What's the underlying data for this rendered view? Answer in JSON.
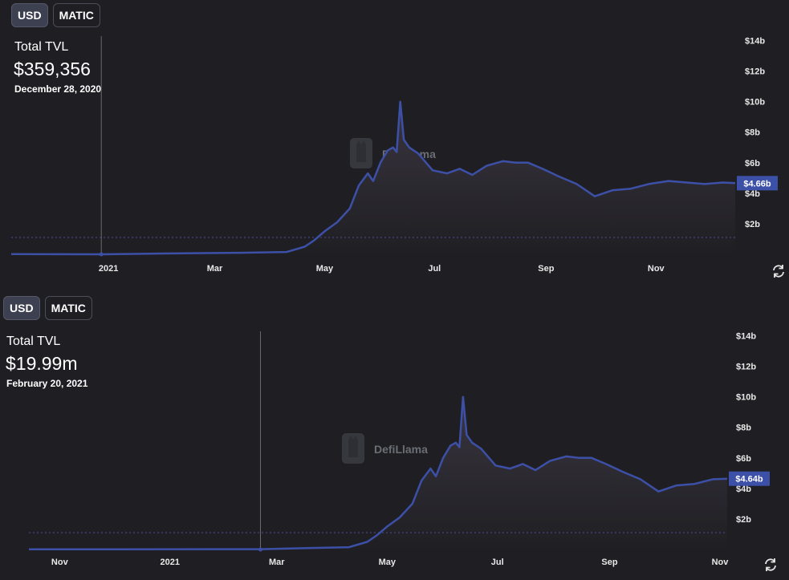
{
  "charts": [
    {
      "toggle": {
        "usd": "USD",
        "matic": "MATIC"
      },
      "tvl_label": "Total TVL",
      "tvl_value": "$359,356",
      "tvl_date": "December 28, 2020",
      "current_label": "$4.66b",
      "watermark": "DefiLlama"
    },
    {
      "toggle": {
        "usd": "USD",
        "matic": "MATIC"
      },
      "tvl_label": "Total TVL",
      "tvl_value": "$19.99m",
      "tvl_date": "February 20, 2021",
      "current_label": "$4.64b",
      "watermark": "DefiLlama"
    }
  ],
  "colors": {
    "background": "#1f1f23",
    "line": "#3d50a8",
    "area_top": "#3a3540",
    "area_bottom": "#1f1f23",
    "crosshair": "#6b6b6b",
    "label_bg": "#3d50a8"
  },
  "icons": {
    "refresh": "refresh-icon",
    "watermark": "llama-icon"
  },
  "chart_data": [
    {
      "type": "area",
      "y_tick_labels": [
        "$2b",
        "$4b",
        "$6b",
        "$8b",
        "$10b",
        "$12b",
        "$14b"
      ],
      "y_ticks": [
        2,
        4,
        6,
        8,
        10,
        12,
        14
      ],
      "x_tick_labels": [
        "2021",
        "Mar",
        "May",
        "Jul",
        "Sep",
        "Nov"
      ],
      "x_ticks": [
        "2021-01-01",
        "2021-03-01",
        "2021-05-01",
        "2021-07-01",
        "2021-09-01",
        "2021-11-01"
      ],
      "x_range": [
        "2020-11-08",
        "2021-12-15"
      ],
      "ylim": [
        0,
        14.5
      ],
      "ylabel_unit": "billions USD",
      "crosshair_date": "2020-12-28",
      "dashed_line_value": 1.1,
      "last_value": 4.66,
      "series": [
        {
          "x": [
            "2020-11-08",
            "2020-12-28",
            "2021-02-01",
            "2021-03-15",
            "2021-04-10",
            "2021-04-20",
            "2021-04-25",
            "2021-05-01",
            "2021-05-08",
            "2021-05-15",
            "2021-05-20",
            "2021-05-25",
            "2021-05-28",
            "2021-06-01",
            "2021-06-05",
            "2021-06-08",
            "2021-06-10",
            "2021-06-12",
            "2021-06-14",
            "2021-06-17",
            "2021-06-22",
            "2021-06-30",
            "2021-07-08",
            "2021-07-15",
            "2021-07-22",
            "2021-07-30",
            "2021-08-08",
            "2021-08-15",
            "2021-08-22",
            "2021-08-30",
            "2021-09-08",
            "2021-09-18",
            "2021-09-28",
            "2021-10-08",
            "2021-10-18",
            "2021-10-28",
            "2021-11-08",
            "2021-11-18",
            "2021-11-28",
            "2021-12-08",
            "2021-12-15"
          ],
          "y": [
            0.01,
            0.0004,
            0.05,
            0.1,
            0.15,
            0.5,
            0.9,
            1.5,
            2.1,
            3.0,
            4.5,
            5.3,
            4.8,
            6.0,
            6.8,
            7.0,
            6.7,
            10.0,
            7.5,
            7.0,
            6.6,
            5.5,
            5.3,
            5.6,
            5.2,
            5.8,
            6.1,
            6.0,
            6.0,
            5.6,
            5.1,
            4.6,
            3.8,
            4.2,
            4.3,
            4.6,
            4.8,
            4.7,
            4.6,
            4.7,
            4.66
          ]
        }
      ]
    },
    {
      "type": "area",
      "y_tick_labels": [
        "$2b",
        "$4b",
        "$6b",
        "$8b",
        "$10b",
        "$12b",
        "$14b"
      ],
      "y_ticks": [
        2,
        4,
        6,
        8,
        10,
        12,
        14
      ],
      "x_tick_labels": [
        "Nov",
        "2021",
        "Mar",
        "May",
        "Jul",
        "Sep",
        "Nov"
      ],
      "x_ticks": [
        "2020-11-01",
        "2021-01-01",
        "2021-03-01",
        "2021-05-01",
        "2021-07-01",
        "2021-09-01",
        "2021-11-01"
      ],
      "x_range": [
        "2020-10-15",
        "2021-11-05"
      ],
      "ylim": [
        0,
        14.5
      ],
      "ylabel_unit": "billions USD",
      "crosshair_date": "2021-02-20",
      "dashed_line_value": 1.1,
      "last_value": 4.64,
      "series": [
        {
          "x": [
            "2020-10-15",
            "2020-12-01",
            "2021-02-20",
            "2021-03-20",
            "2021-04-10",
            "2021-04-20",
            "2021-04-25",
            "2021-05-01",
            "2021-05-08",
            "2021-05-15",
            "2021-05-20",
            "2021-05-25",
            "2021-05-28",
            "2021-06-01",
            "2021-06-05",
            "2021-06-08",
            "2021-06-10",
            "2021-06-12",
            "2021-06-14",
            "2021-06-17",
            "2021-06-22",
            "2021-06-30",
            "2021-07-08",
            "2021-07-15",
            "2021-07-22",
            "2021-07-30",
            "2021-08-08",
            "2021-08-15",
            "2021-08-22",
            "2021-08-30",
            "2021-09-08",
            "2021-09-18",
            "2021-09-28",
            "2021-10-08",
            "2021-10-18",
            "2021-10-28",
            "2021-11-05"
          ],
          "y": [
            0.01,
            0.01,
            0.02,
            0.1,
            0.15,
            0.5,
            0.9,
            1.5,
            2.1,
            3.0,
            4.5,
            5.3,
            4.8,
            6.0,
            6.8,
            7.0,
            6.7,
            10.0,
            7.5,
            7.0,
            6.6,
            5.5,
            5.3,
            5.6,
            5.2,
            5.8,
            6.1,
            6.0,
            6.0,
            5.6,
            5.1,
            4.6,
            3.8,
            4.2,
            4.3,
            4.6,
            4.64
          ]
        }
      ]
    }
  ]
}
